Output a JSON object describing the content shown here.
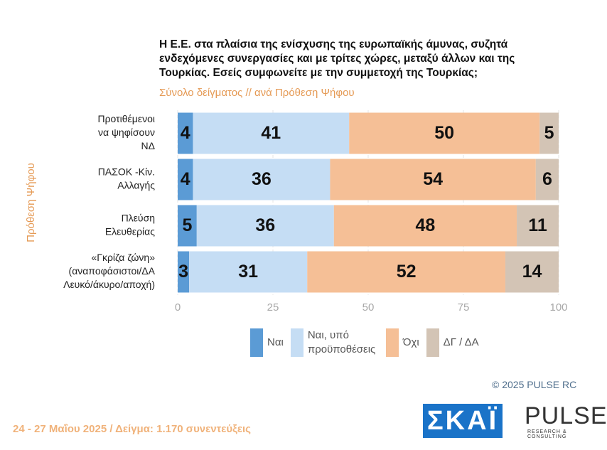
{
  "chart_data": {
    "type": "stacked_barh",
    "title": "Η Ε.Ε. στα πλαίσια της ενίσχυσης της ευρωπαϊκής άμυνας, συζητά ενδεχόμενες συνεργασίες και με τρίτες χώρες, μεταξύ άλλων και της Τουρκίας. Εσείς συμφωνείτε με την συμμετοχή της Τουρκίας;",
    "subtitle": "Σύνολο δείγματος // ανά Πρόθεση Ψήφου",
    "ylabel": "Πρόθεση Ψήφου",
    "categories": [
      [
        "Προτιθέμενοι",
        "να ψηφίσουν",
        "ΝΔ"
      ],
      [
        "ΠΑΣΟΚ -Κίν.",
        "Αλλαγής"
      ],
      [
        "Πλεύση",
        "Ελευθερίας"
      ],
      [
        "«Γκρίζα ζώνη»",
        "(αναποφάσιστοι/ΔΑ",
        "Λευκό/άκυρο/αποχή)"
      ]
    ],
    "series": [
      {
        "name": "Ναι",
        "color": "#5b9bd5",
        "values": [
          4,
          4,
          5,
          3
        ]
      },
      {
        "name": "Ναι, υπό προϋποθέσεις",
        "color": "#c5ddf4",
        "values": [
          41,
          36,
          36,
          31
        ]
      },
      {
        "name": "Όχι",
        "color": "#f5bf96",
        "values": [
          50,
          54,
          48,
          52
        ]
      },
      {
        "name": "ΔΓ / ΔΑ",
        "color": "#d3c4b5",
        "values": [
          5,
          6,
          11,
          14
        ]
      }
    ],
    "xlim": [
      0,
      100
    ],
    "xticks": [
      0,
      25,
      50,
      75,
      100
    ],
    "grid": true
  },
  "footer": {
    "copyright": "©  2025  PULSE RC",
    "dates": "24 - 27 Μαΐου 2025  /  Δείγμα:  1.170 συνεντεύξεις"
  },
  "logos": {
    "skai": "ΣΚΑΪ",
    "pulse": "PULSE",
    "pulse_sub": "RESEARCH & CONSULTING"
  }
}
